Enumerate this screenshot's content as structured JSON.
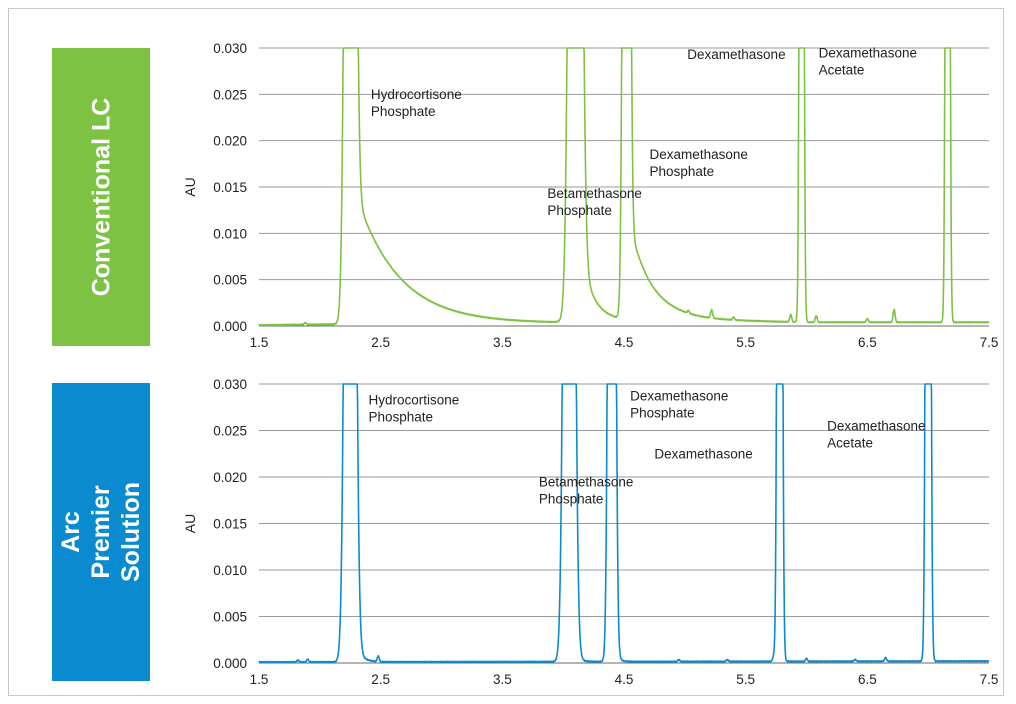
{
  "panels": [
    {
      "label": "Conventional LC",
      "color": "#7dc242"
    },
    {
      "label": "Arc Premier\nSolution",
      "color": "#0a8bd0"
    }
  ],
  "chart_data": [
    {
      "type": "line",
      "ylabel": "AU",
      "xlim": [
        1.5,
        7.5
      ],
      "ylim": [
        0,
        0.03
      ],
      "xticks": [
        "1.5",
        "2.5",
        "3.5",
        "4.5",
        "5.5",
        "6.5",
        "7.5"
      ],
      "yticks": [
        "0.000",
        "0.005",
        "0.010",
        "0.015",
        "0.020",
        "0.025",
        "0.030"
      ],
      "grid": "horizontal",
      "series_color": "#7dc242",
      "peaks": [
        {
          "rt": 2.25,
          "width": 0.03,
          "tail": 0.35,
          "tail_amp": 0.016
        },
        {
          "rt": 4.1,
          "width": 0.035,
          "tail": 0.1,
          "tail_amp": 0.012
        },
        {
          "rt": 4.52,
          "width": 0.02,
          "tail": 0.18,
          "tail_amp": 0.012
        },
        {
          "rt": 5.96,
          "width": 0.012,
          "tail": 0.02,
          "tail_amp": 0.0
        },
        {
          "rt": 7.16,
          "width": 0.012,
          "tail": 0.02,
          "tail_amp": 0.0
        }
      ],
      "minor_peaks": [
        {
          "rt": 1.88,
          "amp": 0.0002
        },
        {
          "rt": 5.03,
          "amp": 0.0003
        },
        {
          "rt": 5.22,
          "amp": 0.0009
        },
        {
          "rt": 5.4,
          "amp": 0.0003
        },
        {
          "rt": 5.87,
          "amp": 0.0008
        },
        {
          "rt": 6.08,
          "amp": 0.0007
        },
        {
          "rt": 6.5,
          "amp": 0.0004
        },
        {
          "rt": 6.72,
          "amp": 0.0014
        }
      ],
      "baseline": [
        {
          "x": 1.5,
          "y": 0.0001
        },
        {
          "x": 2.15,
          "y": 0.0002
        },
        {
          "x": 3.9,
          "y": 0.0003
        },
        {
          "x": 4.9,
          "y": 0.0007
        },
        {
          "x": 6.0,
          "y": 0.0004
        },
        {
          "x": 7.5,
          "y": 0.0004
        }
      ],
      "annotations": [
        {
          "text": "Hydrocortisone\nPhosphate",
          "x": 2.42,
          "y": 0.0245
        },
        {
          "text": "Betamethasone\nPhosphate",
          "x": 3.87,
          "y": 0.0138
        },
        {
          "text": "Dexamethasone\nPhosphate",
          "x": 4.71,
          "y": 0.018
        },
        {
          "text": "Dexamethasone",
          "x": 5.02,
          "y": 0.0288
        },
        {
          "text": "Dexamethasone\nAcetate",
          "x": 6.1,
          "y": 0.029
        }
      ]
    },
    {
      "type": "line",
      "ylabel": "AU",
      "xlim": [
        1.5,
        7.5
      ],
      "ylim": [
        0,
        0.03
      ],
      "xticks": [
        "1.5",
        "2.5",
        "3.5",
        "4.5",
        "5.5",
        "6.5",
        "7.5"
      ],
      "yticks": [
        "0.000",
        "0.005",
        "0.010",
        "0.015",
        "0.020",
        "0.025",
        "0.030"
      ],
      "grid": "horizontal",
      "series_color": "#0a8bd0",
      "peaks": [
        {
          "rt": 2.25,
          "width": 0.03,
          "tail": 0.05,
          "tail_amp": 0.004
        },
        {
          "rt": 4.05,
          "width": 0.03,
          "tail": 0.04,
          "tail_amp": 0.002
        },
        {
          "rt": 4.4,
          "width": 0.02,
          "tail": 0.03,
          "tail_amp": 0.002
        },
        {
          "rt": 5.78,
          "width": 0.014,
          "tail": 0.02,
          "tail_amp": 0.0
        },
        {
          "rt": 7.0,
          "width": 0.014,
          "tail": 0.02,
          "tail_amp": 0.0
        }
      ],
      "minor_peaks": [
        {
          "rt": 1.82,
          "amp": 0.0002
        },
        {
          "rt": 1.9,
          "amp": 0.0003
        },
        {
          "rt": 2.48,
          "amp": 0.0006
        },
        {
          "rt": 4.95,
          "amp": 0.0002
        },
        {
          "rt": 5.35,
          "amp": 0.0002
        },
        {
          "rt": 5.73,
          "amp": 0.0005
        },
        {
          "rt": 6.0,
          "amp": 0.0003
        },
        {
          "rt": 6.4,
          "amp": 0.0002
        },
        {
          "rt": 6.65,
          "amp": 0.0004
        }
      ],
      "baseline": [
        {
          "x": 1.5,
          "y": 0.0001
        },
        {
          "x": 7.5,
          "y": 0.0002
        }
      ],
      "annotations": [
        {
          "text": "Hydrocortisone\nPhosphate",
          "x": 2.4,
          "y": 0.0278
        },
        {
          "text": "Betamethasone\nPhosphate",
          "x": 3.8,
          "y": 0.019
        },
        {
          "text": "Dexamethasone\nPhosphate",
          "x": 4.55,
          "y": 0.0282
        },
        {
          "text": "Dexamethasone",
          "x": 4.75,
          "y": 0.022
        },
        {
          "text": "Dexamethasone\nAcetate",
          "x": 6.17,
          "y": 0.025
        }
      ]
    }
  ]
}
